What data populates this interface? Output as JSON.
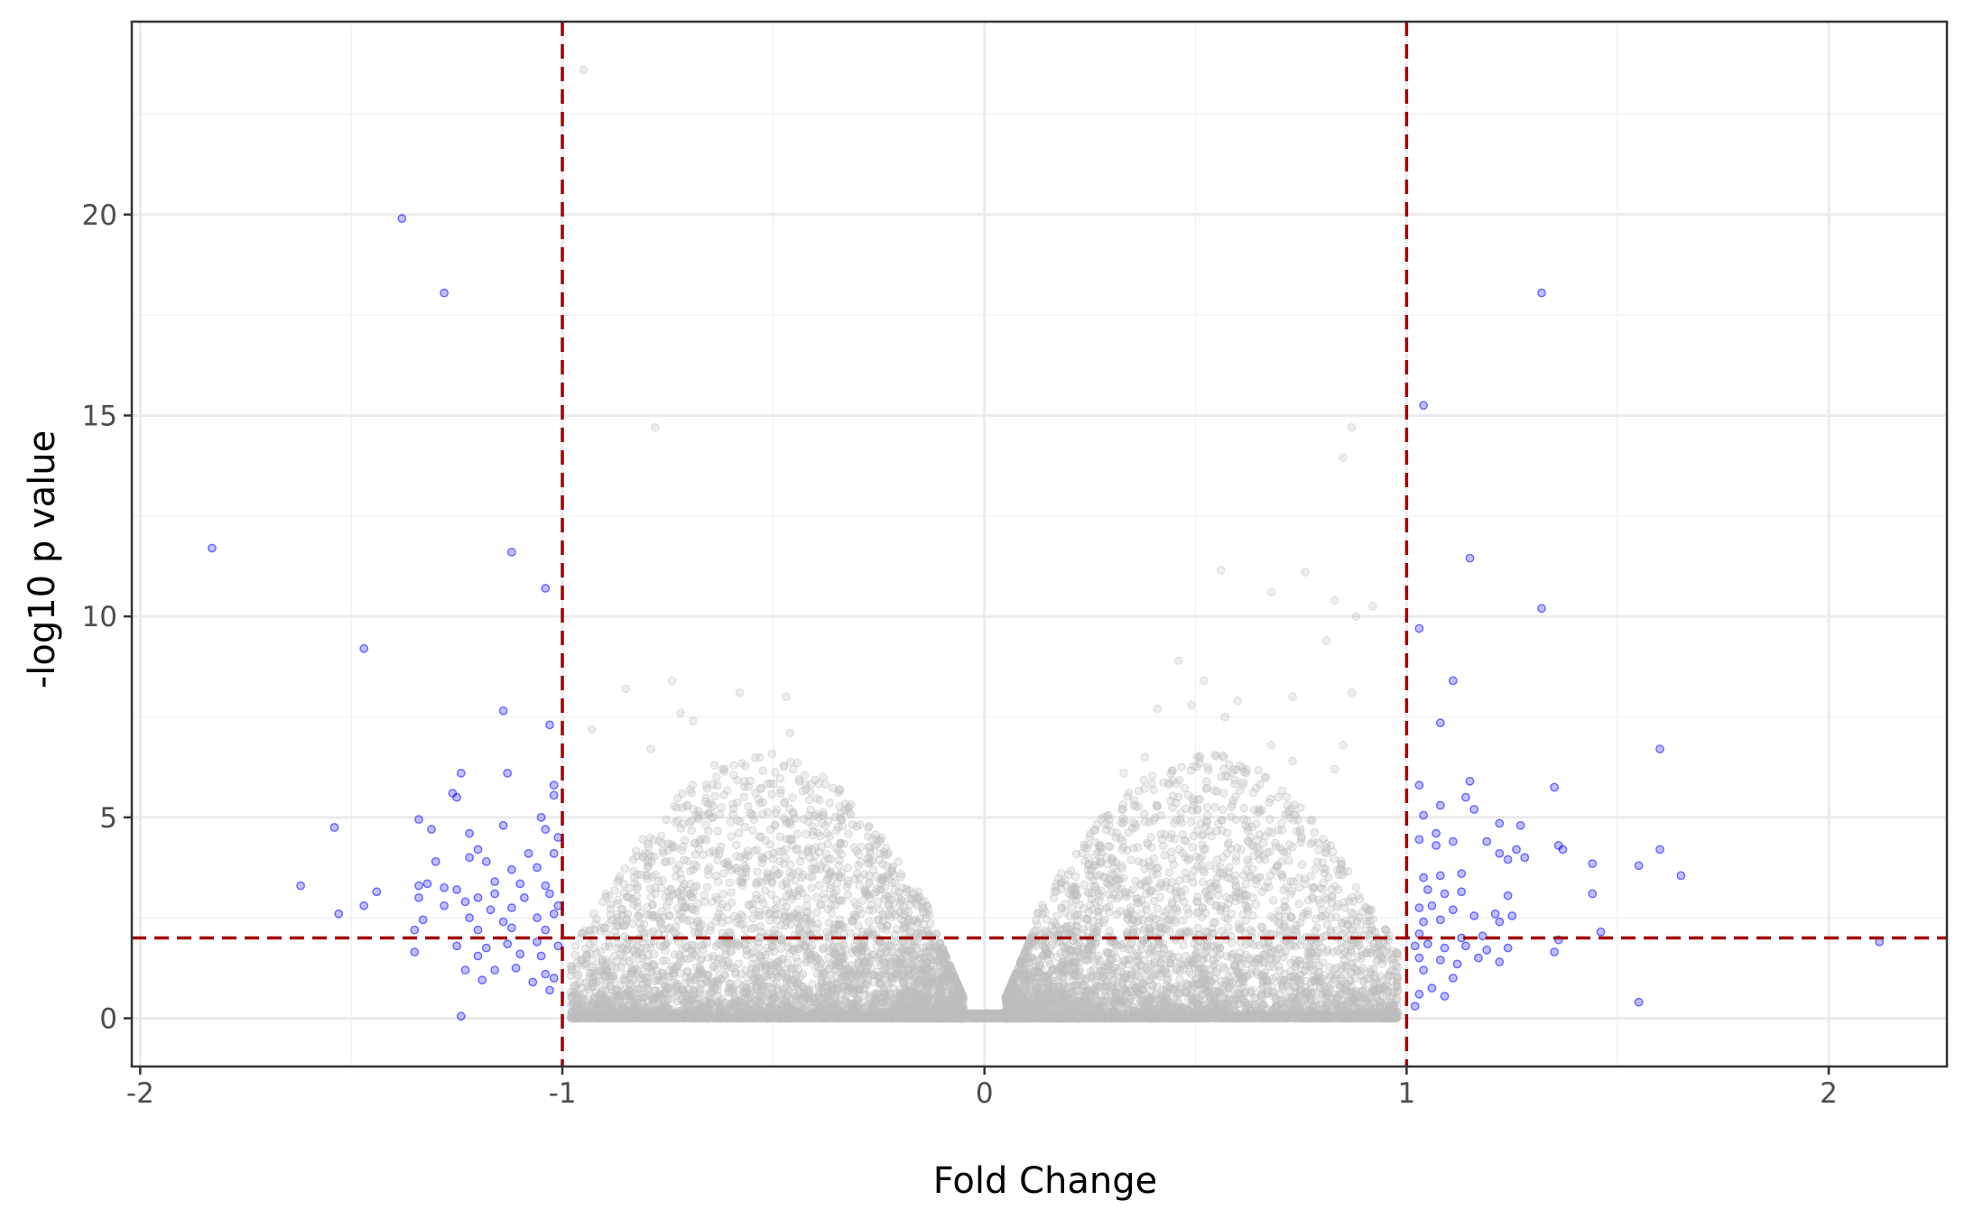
{
  "chart_data": {
    "type": "scatter",
    "title": "",
    "xlabel": "Fold Change",
    "ylabel": "-log10 p value",
    "xlim": [
      -2.02,
      2.28
    ],
    "ylim": [
      -1.2,
      24.8
    ],
    "x_ticks": [
      -2,
      -1,
      0,
      1,
      2
    ],
    "x_tick_labels": [
      "-2",
      "-1",
      "0",
      "1",
      "2"
    ],
    "y_ticks": [
      0,
      5,
      10,
      15,
      20
    ],
    "y_tick_labels": [
      "0",
      "5",
      "10",
      "15",
      "20"
    ],
    "grid": true,
    "legend": "none",
    "thresholds": {
      "fold_change": [
        -1,
        1
      ],
      "neg_log10_p": 2
    },
    "colors": {
      "significant": "#0000ff",
      "not_significant": "#bebebe",
      "threshold_line": "#a00000",
      "panel_border": "#333333"
    },
    "background_cloud": {
      "series": "not significant",
      "description_of_density": "dense cloud of points with |fold change| < 1, concentrated at -log10 p < 3",
      "points": [
        [
          -0.95,
          23.6
        ],
        [
          -0.78,
          14.7
        ],
        [
          0.87,
          14.7
        ],
        [
          0.85,
          13.95
        ],
        [
          0.56,
          11.15
        ],
        [
          0.76,
          11.1
        ],
        [
          0.68,
          10.6
        ],
        [
          0.83,
          10.4
        ],
        [
          0.92,
          10.25
        ],
        [
          0.88,
          10.0
        ],
        [
          0.81,
          9.4
        ],
        [
          0.46,
          8.9
        ],
        [
          -0.85,
          8.2
        ],
        [
          -0.74,
          8.4
        ],
        [
          -0.58,
          8.1
        ],
        [
          -0.47,
          8.0
        ],
        [
          0.52,
          8.4
        ],
        [
          0.87,
          8.1
        ],
        [
          0.6,
          7.9
        ],
        [
          0.73,
          8.0
        ],
        [
          0.41,
          7.7
        ],
        [
          0.49,
          7.8
        ],
        [
          0.57,
          7.5
        ],
        [
          -0.72,
          7.6
        ],
        [
          -0.69,
          7.4
        ],
        [
          -0.46,
          7.1
        ],
        [
          -0.93,
          7.2
        ],
        [
          -0.64,
          6.3
        ],
        [
          -0.79,
          6.7
        ],
        [
          0.33,
          6.1
        ],
        [
          0.38,
          6.5
        ],
        [
          0.68,
          6.8
        ],
        [
          0.73,
          6.4
        ],
        [
          0.62,
          6.1
        ],
        [
          0.85,
          6.8
        ],
        [
          0.83,
          6.2
        ]
      ]
    },
    "significant_points": {
      "series": "significant",
      "points": [
        [
          -1.38,
          19.9
        ],
        [
          -1.28,
          18.05
        ],
        [
          -1.83,
          11.7
        ],
        [
          -1.12,
          11.6
        ],
        [
          -1.04,
          10.7
        ],
        [
          -1.47,
          9.2
        ],
        [
          -1.14,
          7.65
        ],
        [
          -1.03,
          7.3
        ],
        [
          -1.24,
          6.1
        ],
        [
          -1.13,
          6.1
        ],
        [
          -1.02,
          5.8
        ],
        [
          -1.26,
          5.6
        ],
        [
          -1.25,
          5.5
        ],
        [
          -1.02,
          5.55
        ],
        [
          -1.34,
          4.95
        ],
        [
          -1.05,
          5.0
        ],
        [
          -1.54,
          4.75
        ],
        [
          -1.31,
          4.7
        ],
        [
          -1.22,
          4.6
        ],
        [
          -1.14,
          4.8
        ],
        [
          -1.04,
          4.7
        ],
        [
          -1.01,
          4.5
        ],
        [
          -1.02,
          4.1
        ],
        [
          -1.2,
          4.2
        ],
        [
          -1.22,
          4.0
        ],
        [
          -1.08,
          4.1
        ],
        [
          -1.3,
          3.9
        ],
        [
          -1.18,
          3.9
        ],
        [
          -1.12,
          3.7
        ],
        [
          -1.06,
          3.75
        ],
        [
          -1.62,
          3.3
        ],
        [
          -1.34,
          3.3
        ],
        [
          -1.32,
          3.35
        ],
        [
          -1.28,
          3.25
        ],
        [
          -1.25,
          3.2
        ],
        [
          -1.16,
          3.4
        ],
        [
          -1.1,
          3.35
        ],
        [
          -1.04,
          3.3
        ],
        [
          -1.44,
          3.15
        ],
        [
          -1.34,
          3.0
        ],
        [
          -1.2,
          3.0
        ],
        [
          -1.16,
          3.1
        ],
        [
          -1.09,
          3.0
        ],
        [
          -1.03,
          3.1
        ],
        [
          -1.28,
          2.8
        ],
        [
          -1.23,
          2.9
        ],
        [
          -1.17,
          2.7
        ],
        [
          -1.12,
          2.75
        ],
        [
          -1.01,
          2.8
        ],
        [
          -1.47,
          2.8
        ],
        [
          -1.53,
          2.6
        ],
        [
          -1.33,
          2.45
        ],
        [
          -1.22,
          2.5
        ],
        [
          -1.14,
          2.4
        ],
        [
          -1.06,
          2.5
        ],
        [
          -1.02,
          2.6
        ],
        [
          -1.35,
          2.2
        ],
        [
          -1.2,
          2.2
        ],
        [
          -1.12,
          2.25
        ],
        [
          -1.04,
          2.2
        ],
        [
          -1.25,
          1.8
        ],
        [
          -1.18,
          1.75
        ],
        [
          -1.13,
          1.85
        ],
        [
          -1.06,
          1.9
        ],
        [
          -1.01,
          1.8
        ],
        [
          -1.35,
          1.65
        ],
        [
          -1.2,
          1.55
        ],
        [
          -1.1,
          1.6
        ],
        [
          -1.05,
          1.55
        ],
        [
          -1.23,
          1.2
        ],
        [
          -1.16,
          1.2
        ],
        [
          -1.11,
          1.25
        ],
        [
          -1.04,
          1.1
        ],
        [
          -1.02,
          1.0
        ],
        [
          -1.07,
          0.9
        ],
        [
          -1.03,
          0.7
        ],
        [
          -1.24,
          0.05
        ],
        [
          -1.19,
          0.95
        ],
        [
          1.32,
          18.05
        ],
        [
          1.04,
          15.25
        ],
        [
          1.15,
          11.45
        ],
        [
          1.32,
          10.2
        ],
        [
          1.03,
          9.7
        ],
        [
          1.11,
          8.4
        ],
        [
          1.08,
          7.35
        ],
        [
          1.6,
          6.7
        ],
        [
          1.03,
          5.8
        ],
        [
          1.15,
          5.9
        ],
        [
          1.35,
          5.75
        ],
        [
          1.08,
          5.3
        ],
        [
          1.14,
          5.5
        ],
        [
          1.04,
          5.05
        ],
        [
          1.16,
          5.2
        ],
        [
          1.27,
          4.8
        ],
        [
          1.22,
          4.85
        ],
        [
          1.07,
          4.6
        ],
        [
          1.03,
          4.45
        ],
        [
          1.11,
          4.4
        ],
        [
          1.19,
          4.4
        ],
        [
          1.36,
          4.3
        ],
        [
          1.37,
          4.2
        ],
        [
          1.6,
          4.2
        ],
        [
          1.07,
          4.3
        ],
        [
          1.22,
          4.1
        ],
        [
          1.26,
          4.2
        ],
        [
          1.28,
          4.0
        ],
        [
          1.44,
          3.85
        ],
        [
          1.55,
          3.8
        ],
        [
          1.24,
          3.95
        ],
        [
          1.04,
          3.5
        ],
        [
          1.08,
          3.55
        ],
        [
          1.13,
          3.6
        ],
        [
          1.65,
          3.55
        ],
        [
          1.05,
          3.2
        ],
        [
          1.09,
          3.1
        ],
        [
          1.13,
          3.15
        ],
        [
          1.44,
          3.1
        ],
        [
          1.24,
          3.05
        ],
        [
          1.03,
          2.75
        ],
        [
          1.06,
          2.8
        ],
        [
          1.11,
          2.7
        ],
        [
          1.16,
          2.55
        ],
        [
          1.21,
          2.6
        ],
        [
          1.25,
          2.55
        ],
        [
          1.22,
          2.4
        ],
        [
          1.04,
          2.4
        ],
        [
          1.08,
          2.45
        ],
        [
          1.46,
          2.15
        ],
        [
          1.03,
          2.1
        ],
        [
          1.13,
          2.0
        ],
        [
          1.18,
          2.05
        ],
        [
          1.36,
          1.95
        ],
        [
          1.02,
          1.8
        ],
        [
          1.05,
          1.85
        ],
        [
          1.09,
          1.75
        ],
        [
          1.14,
          1.8
        ],
        [
          1.19,
          1.7
        ],
        [
          1.24,
          1.75
        ],
        [
          1.35,
          1.65
        ],
        [
          2.12,
          1.9
        ],
        [
          1.03,
          1.5
        ],
        [
          1.08,
          1.45
        ],
        [
          1.12,
          1.35
        ],
        [
          1.17,
          1.5
        ],
        [
          1.22,
          1.4
        ],
        [
          1.04,
          1.2
        ],
        [
          1.11,
          1.0
        ],
        [
          1.06,
          0.75
        ],
        [
          1.03,
          0.6
        ],
        [
          1.09,
          0.55
        ],
        [
          1.55,
          0.4
        ],
        [
          1.02,
          0.3
        ]
      ]
    }
  }
}
